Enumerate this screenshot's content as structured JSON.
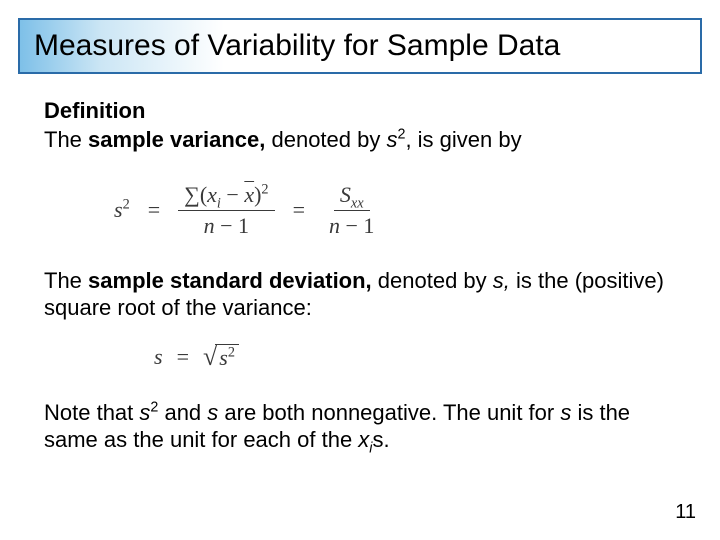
{
  "title": "Measures of Variability for Sample Data",
  "definition_label": "Definition",
  "p1_a": "The ",
  "p1_bold": "sample variance,",
  "p1_b": " denoted by ",
  "p1_sym": "s",
  "p1_sup": "2",
  "p1_c": ", is given by",
  "formula1": {
    "lhs_base": "s",
    "lhs_sup": "2",
    "eq": "=",
    "num1_sigma": "∑(",
    "num1_xi_base": "x",
    "num1_xi_sub": "i",
    "num1_minus": " − ",
    "num1_xbar": "x",
    "num1_close": ")",
    "num1_sup": "2",
    "den1_a": "n",
    "den1_b": " − 1",
    "num2_base": "S",
    "num2_sub": "xx",
    "den2_a": "n",
    "den2_b": " − 1"
  },
  "p2_a": "The ",
  "p2_bold": "sample standard deviation,",
  "p2_b": " denoted by ",
  "p2_sym": "s,",
  "p2_c": " is the (positive) square root of the variance:",
  "formula2": {
    "lhs": "s",
    "eq": "=",
    "arg_base": "s",
    "arg_sup": "2"
  },
  "p3_a": "Note that ",
  "p3_sym1": "s",
  "p3_sup1": "2",
  "p3_b": " and ",
  "p3_sym2": "s",
  "p3_c": " are both nonnegative. The unit for ",
  "p3_sym3": "s",
  "p3_d": " is the same as the unit for each of the ",
  "p3_xi_base": "x",
  "p3_xi_sub": "i",
  "p3_e": "s.",
  "page_number": "11"
}
